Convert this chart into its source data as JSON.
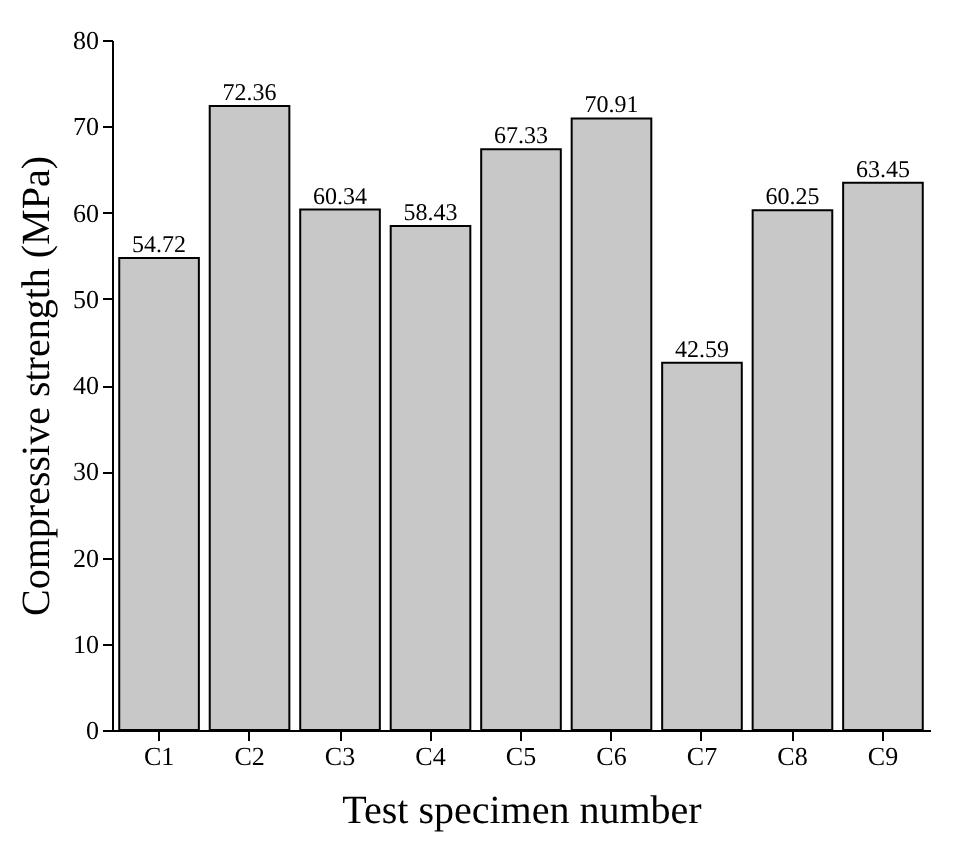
{
  "chart_data": {
    "type": "bar",
    "xlabel": "Test specimen number",
    "ylabel": "Compressive strength (MPa)",
    "categories": [
      "C1",
      "C2",
      "C3",
      "C4",
      "C5",
      "C6",
      "C7",
      "C8",
      "C9"
    ],
    "values": [
      54.72,
      72.36,
      60.34,
      58.43,
      67.33,
      70.91,
      42.59,
      60.25,
      63.45
    ],
    "color": "#c8c8c8",
    "ylim": [
      0,
      80
    ],
    "yticks": [
      0,
      10,
      20,
      30,
      40,
      50,
      60,
      70,
      80
    ],
    "data_labels": true,
    "grid": false
  }
}
